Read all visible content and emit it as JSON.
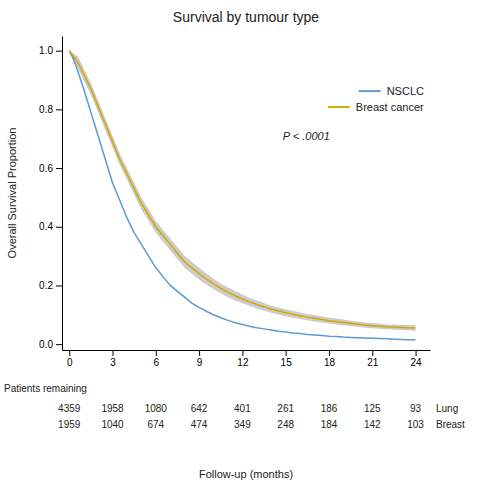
{
  "chart_data": {
    "type": "line",
    "title": "Survival by tumour type",
    "xlabel": "Follow-up (months)",
    "ylabel": "Overall Survival Proportion",
    "xlim": [
      -0.5,
      25.0
    ],
    "ylim": [
      -0.02,
      1.05
    ],
    "xticks": [
      0,
      3,
      6,
      9,
      12,
      15,
      18,
      21,
      24
    ],
    "yticks": [
      {
        "value": 0.0,
        "label": "0.0"
      },
      0.2,
      0.4,
      0.6,
      0.8,
      {
        "value": 1.0,
        "label": "1.0"
      }
    ],
    "grid": false,
    "legend": "upper right",
    "x": [
      0,
      0.3,
      0.6,
      1,
      1.5,
      2,
      2.5,
      3,
      3.5,
      4,
      4.5,
      5,
      5.5,
      6,
      6.5,
      7,
      7.5,
      8,
      8.5,
      9,
      9.5,
      10,
      10.5,
      11,
      11.5,
      12,
      12.5,
      13,
      13.5,
      14,
      14.5,
      15,
      15.5,
      16,
      16.5,
      17,
      17.5,
      18,
      18.5,
      19,
      19.5,
      20,
      20.5,
      21,
      21.5,
      22,
      22.5,
      23,
      23.5,
      24
    ],
    "series": [
      {
        "name": "NSCLC",
        "color": "#5b9bd5",
        "values": [
          1.0,
          0.97,
          0.93,
          0.87,
          0.79,
          0.71,
          0.63,
          0.55,
          0.49,
          0.43,
          0.38,
          0.34,
          0.3,
          0.26,
          0.23,
          0.2,
          0.18,
          0.16,
          0.14,
          0.125,
          0.112,
          0.1,
          0.09,
          0.081,
          0.073,
          0.067,
          0.061,
          0.056,
          0.052,
          0.048,
          0.044,
          0.041,
          0.038,
          0.036,
          0.033,
          0.031,
          0.029,
          0.027,
          0.026,
          0.024,
          0.023,
          0.022,
          0.021,
          0.02,
          0.019,
          0.018,
          0.017,
          0.016,
          0.015,
          0.015
        ]
      },
      {
        "name": "Breast cancer",
        "color": "#d4a800",
        "band_color": "#cccccc",
        "values": [
          1.0,
          0.98,
          0.96,
          0.92,
          0.87,
          0.81,
          0.75,
          0.69,
          0.63,
          0.58,
          0.53,
          0.48,
          0.44,
          0.4,
          0.37,
          0.34,
          0.31,
          0.28,
          0.26,
          0.24,
          0.222,
          0.205,
          0.19,
          0.177,
          0.165,
          0.154,
          0.144,
          0.135,
          0.127,
          0.119,
          0.113,
          0.107,
          0.102,
          0.097,
          0.092,
          0.088,
          0.084,
          0.08,
          0.077,
          0.074,
          0.071,
          0.068,
          0.065,
          0.063,
          0.061,
          0.059,
          0.058,
          0.057,
          0.056,
          0.055
        ],
        "lower": [
          1.0,
          0.97,
          0.94,
          0.9,
          0.85,
          0.79,
          0.73,
          0.67,
          0.61,
          0.56,
          0.51,
          0.46,
          0.42,
          0.38,
          0.35,
          0.32,
          0.29,
          0.26,
          0.24,
          0.22,
          0.203,
          0.187,
          0.173,
          0.16,
          0.149,
          0.139,
          0.13,
          0.121,
          0.114,
          0.107,
          0.101,
          0.095,
          0.09,
          0.086,
          0.081,
          0.077,
          0.074,
          0.07,
          0.067,
          0.064,
          0.062,
          0.059,
          0.056,
          0.054,
          0.052,
          0.051,
          0.049,
          0.048,
          0.047,
          0.046
        ],
        "upper": [
          1.0,
          0.99,
          0.98,
          0.94,
          0.89,
          0.83,
          0.77,
          0.71,
          0.65,
          0.6,
          0.55,
          0.5,
          0.46,
          0.42,
          0.39,
          0.36,
          0.33,
          0.3,
          0.28,
          0.26,
          0.241,
          0.223,
          0.207,
          0.194,
          0.181,
          0.169,
          0.158,
          0.149,
          0.14,
          0.131,
          0.125,
          0.119,
          0.114,
          0.108,
          0.103,
          0.099,
          0.094,
          0.09,
          0.087,
          0.084,
          0.08,
          0.077,
          0.074,
          0.072,
          0.07,
          0.067,
          0.067,
          0.066,
          0.065,
          0.064
        ]
      }
    ],
    "annotations": [
      {
        "text": "P < .0001"
      }
    ],
    "at_risk": {
      "label": "Patients remaining",
      "x": [
        0,
        3,
        6,
        9,
        12,
        15,
        18,
        21,
        24
      ],
      "rows": [
        {
          "name": "Lung",
          "values": [
            4359,
            1958,
            1080,
            642,
            401,
            261,
            186,
            125,
            93
          ]
        },
        {
          "name": "Breast",
          "values": [
            1959,
            1040,
            674,
            474,
            349,
            248,
            184,
            142,
            103
          ]
        }
      ]
    }
  }
}
